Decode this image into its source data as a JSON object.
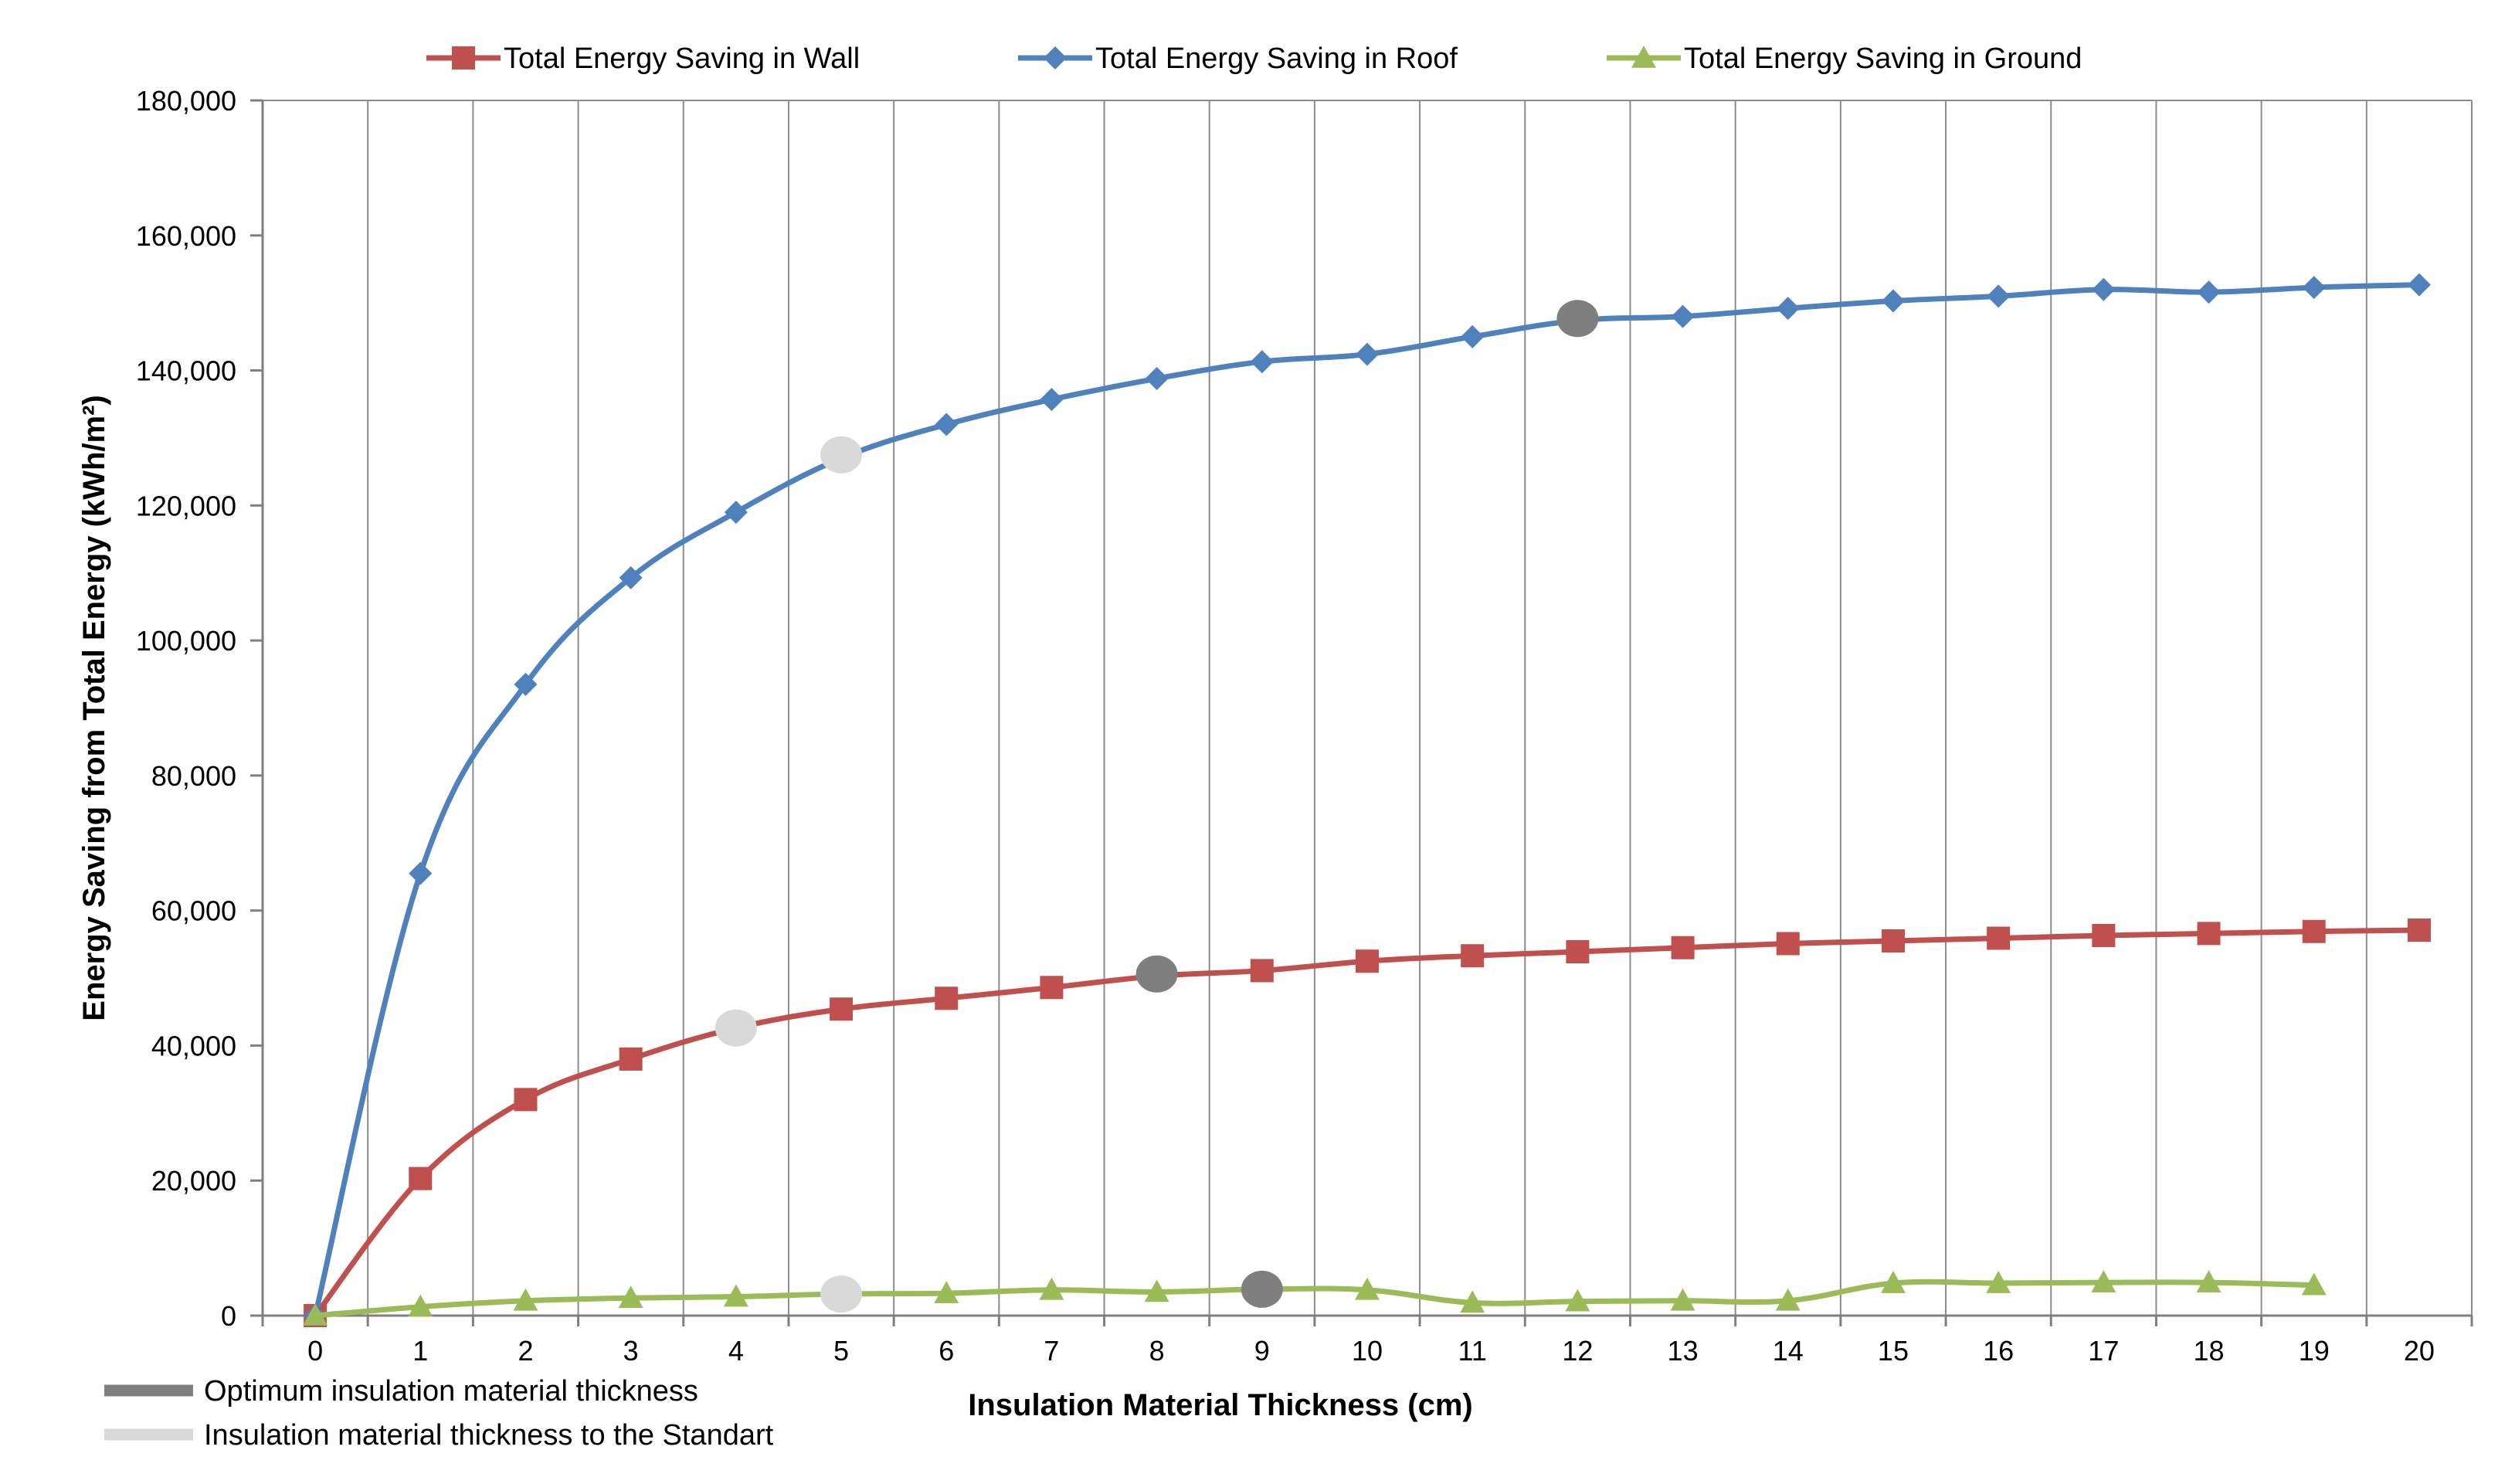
{
  "chart_data": {
    "type": "line",
    "title": "",
    "xlabel": "Insulation Material Thickness (cm)",
    "ylabel": "Energy Saving from Total Energy (kWh/m²)",
    "x": [
      0,
      1,
      2,
      3,
      4,
      5,
      6,
      7,
      8,
      9,
      10,
      11,
      12,
      13,
      14,
      15,
      16,
      17,
      18,
      19,
      20
    ],
    "xticks": [
      "0",
      "1",
      "2",
      "3",
      "4",
      "5",
      "6",
      "7",
      "8",
      "9",
      "10",
      "11",
      "12",
      "13",
      "14",
      "15",
      "16",
      "17",
      "18",
      "19",
      "20"
    ],
    "ylim": [
      0,
      180000
    ],
    "yticks": [
      0,
      20000,
      40000,
      60000,
      80000,
      100000,
      120000,
      140000,
      160000,
      180000
    ],
    "ytick_labels": [
      "0",
      "20,000",
      "40,000",
      "60,000",
      "80,000",
      "100,000",
      "120,000",
      "140,000",
      "160,000",
      "180,000"
    ],
    "grid": "vertical",
    "legend_position": "top",
    "series": [
      {
        "name": "Total Energy Saving in Wall",
        "color": "#c0504d",
        "marker": "square",
        "x": [
          0,
          1,
          2,
          3,
          4,
          5,
          6,
          7,
          8,
          9,
          10,
          11,
          12,
          13,
          14,
          15,
          16,
          17,
          18,
          19,
          20
        ],
        "values": [
          0,
          20300,
          32000,
          38000,
          42600,
          45400,
          47000,
          48600,
          50300,
          51100,
          52500,
          53300,
          53900,
          54500,
          55100,
          55500,
          55900,
          56300,
          56600,
          56900,
          57100
        ]
      },
      {
        "name": "Total Energy Saving in Roof",
        "color": "#4f81bd",
        "marker": "diamond",
        "x": [
          0,
          1,
          2,
          3,
          4,
          5,
          6,
          7,
          8,
          9,
          10,
          11,
          12,
          13,
          14,
          15,
          16,
          17,
          18,
          19,
          20
        ],
        "values": [
          0,
          65500,
          93500,
          109300,
          119000,
          127000,
          132000,
          135700,
          138800,
          141300,
          142400,
          145000,
          147400,
          148000,
          149200,
          150300,
          151000,
          152000,
          151600,
          152300,
          152700
        ]
      },
      {
        "name": "Total Energy Saving in Ground",
        "color": "#9bbb59",
        "marker": "triangle",
        "x": [
          0,
          1,
          2,
          3,
          4,
          5,
          6,
          7,
          8,
          9,
          10,
          11,
          12,
          13,
          14,
          15,
          16,
          17,
          18,
          19
        ],
        "values": [
          0,
          1300,
          2200,
          2600,
          2800,
          3200,
          3300,
          3800,
          3500,
          3900,
          3800,
          1900,
          2100,
          2200,
          2200,
          4800,
          4800,
          4900,
          4900,
          4500
        ]
      }
    ],
    "highlights": [
      {
        "series": "Total Energy Saving in Roof",
        "x": 5,
        "value": 127500,
        "kind": "standard"
      },
      {
        "series": "Total Energy Saving in Roof",
        "x": 12,
        "value": 147700,
        "kind": "optimum"
      },
      {
        "series": "Total Energy Saving in Wall",
        "x": 4,
        "value": 42600,
        "kind": "standard"
      },
      {
        "series": "Total Energy Saving in Wall",
        "x": 8,
        "value": 50600,
        "kind": "optimum"
      },
      {
        "series": "Total Energy Saving in Ground",
        "x": 5,
        "value": 3200,
        "kind": "standard"
      },
      {
        "series": "Total Energy Saving in Ground",
        "x": 9,
        "value": 3900,
        "kind": "optimum"
      }
    ],
    "highlight_legend": [
      {
        "kind": "optimum",
        "label": "Optimum insulation material thickness",
        "color": "#7f7f7f"
      },
      {
        "kind": "standard",
        "label": "Insulation material thickness to the Standart",
        "color": "#d9d9d9"
      }
    ]
  }
}
